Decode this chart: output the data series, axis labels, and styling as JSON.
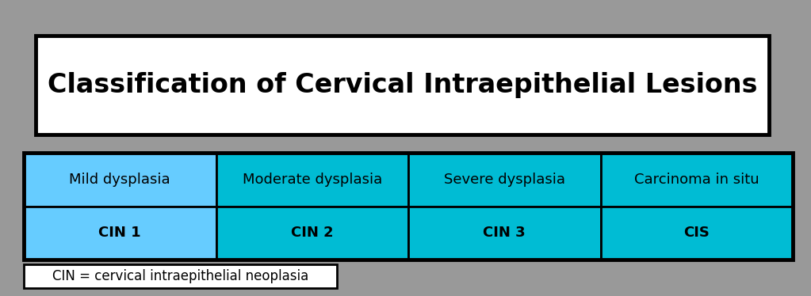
{
  "background_color": "#999999",
  "title_text": "Classification of Cervical Intraepithelial Lesions",
  "title_box_color": "#ffffff",
  "title_border_color": "#000000",
  "row1_labels": [
    "Mild dysplasia",
    "Moderate dysplasia",
    "Severe dysplasia",
    "Carcinoma in situ"
  ],
  "row2_labels": [
    "CIN 1",
    "CIN 2",
    "CIN 3",
    "CIS"
  ],
  "row1_colors": [
    "#66ccff",
    "#00bcd4",
    "#00bcd4",
    "#00bcd4"
  ],
  "row2_colors": [
    "#66ccff",
    "#00bcd4",
    "#00bcd4",
    "#00bcd4"
  ],
  "footnote_text": "CIN = cervical intraepithelial neoplasia",
  "footnote_box_color": "#ffffff",
  "footnote_border_color": "#000000",
  "cell_border_color": "#000000",
  "table_border_color": "#000000",
  "text_color": "#000000",
  "title_fontsize": 24,
  "cell_fontsize": 13,
  "footnote_fontsize": 12,
  "fig_width": 10.23,
  "fig_height": 3.74,
  "dpi": 100
}
